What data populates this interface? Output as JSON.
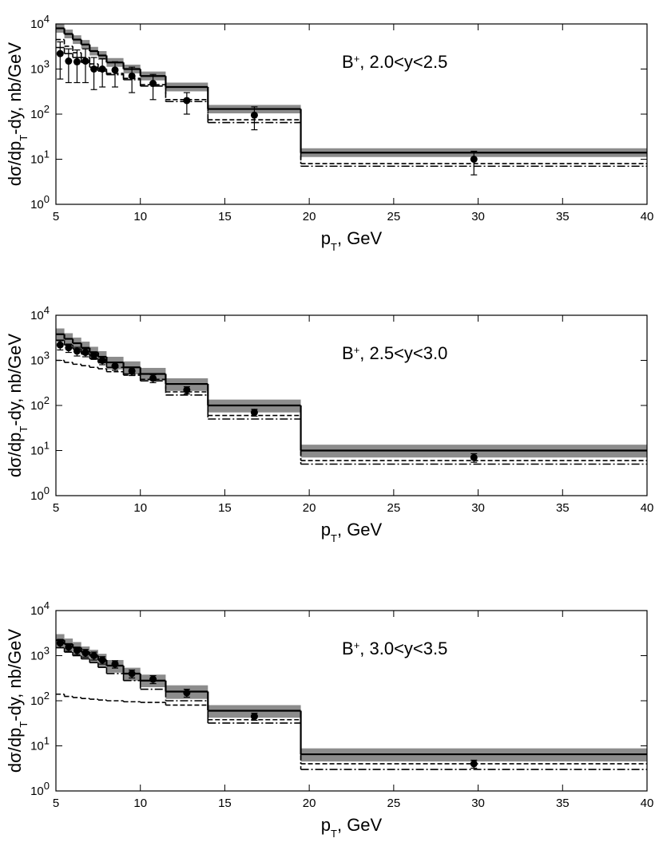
{
  "chart_data": [
    {
      "type": "histogram",
      "log_y": true,
      "annotation": [
        "B",
        "+",
        ", 2.0<y<2.5"
      ],
      "xlabel": [
        "p",
        "T",
        ", GeV"
      ],
      "ylabel": [
        "dσ/dp",
        "T",
        "-dy, nb/GeV"
      ],
      "xlim": [
        5,
        40
      ],
      "xticks": [
        5,
        10,
        15,
        20,
        25,
        30,
        35,
        40
      ],
      "ylim": [
        1,
        10000
      ],
      "yticks": [
        {
          "value": 1,
          "label": [
            "10",
            "0"
          ]
        },
        {
          "value": 10,
          "label": [
            "10",
            "1"
          ]
        },
        {
          "value": 100,
          "label": [
            "10",
            "2"
          ]
        },
        {
          "value": 1000,
          "label": [
            "10",
            "3"
          ]
        },
        {
          "value": 10000,
          "label": [
            "10",
            "4"
          ]
        }
      ],
      "bins": [
        5,
        5.5,
        6,
        6.5,
        7,
        7.5,
        8,
        9,
        10,
        11.5,
        14,
        19.5,
        40
      ],
      "band": {
        "color": "#8c8c8c",
        "low": [
          6400,
          4800,
          3600,
          2800,
          2000,
          1600,
          1120,
          800,
          560,
          320,
          104,
          11.2
        ],
        "high": [
          10000,
          7500,
          5600,
          4400,
          3100,
          2500,
          1750,
          1250,
          880,
          500,
          160,
          17.5
        ]
      },
      "histograms": [
        {
          "style": "solid",
          "color": "#000000",
          "values": [
            8000,
            6000,
            4500,
            3500,
            2500,
            2000,
            1400,
            1000,
            700,
            400,
            130,
            14
          ]
        },
        {
          "style": "dashed",
          "color": "#000000",
          "values": [
            4500,
            3200,
            2300,
            1800,
            1300,
            1000,
            800,
            620,
            450,
            210,
            75,
            8
          ]
        },
        {
          "style": "dashdot",
          "color": "#000000",
          "values": [
            3000,
            2200,
            1800,
            1400,
            1100,
            900,
            750,
            580,
            420,
            190,
            65,
            7
          ]
        }
      ],
      "points": {
        "color": "#000000",
        "x": [
          5.25,
          5.75,
          6.25,
          6.75,
          7.25,
          7.75,
          8.5,
          9.5,
          10.75,
          12.75,
          16.75,
          29.75
        ],
        "values": [
          2200,
          1500,
          1450,
          1500,
          1000,
          1000,
          950,
          700,
          480,
          200,
          95,
          10
        ],
        "errors_minus": [
          1600,
          1000,
          950,
          1000,
          650,
          600,
          550,
          400,
          270,
          100,
          50,
          5.5
        ],
        "errors_plus": [
          1800,
          1300,
          1200,
          1300,
          800,
          700,
          500,
          400,
          280,
          100,
          50,
          5
        ]
      }
    },
    {
      "type": "histogram",
      "log_y": true,
      "annotation": [
        "B",
        "+",
        ", 2.5<y<3.0"
      ],
      "xlabel": [
        "p",
        "T",
        ", GeV"
      ],
      "ylabel": [
        "dσ/dp",
        "T",
        "-dy, nb/GeV"
      ],
      "xlim": [
        5,
        40
      ],
      "xticks": [
        5,
        10,
        15,
        20,
        25,
        30,
        35,
        40
      ],
      "ylim": [
        1,
        10000
      ],
      "yticks": [
        {
          "value": 1,
          "label": [
            "10",
            "0"
          ]
        },
        {
          "value": 10,
          "label": [
            "10",
            "1"
          ]
        },
        {
          "value": 100,
          "label": [
            "10",
            "2"
          ]
        },
        {
          "value": 1000,
          "label": [
            "10",
            "3"
          ]
        },
        {
          "value": 10000,
          "label": [
            "10",
            "4"
          ]
        }
      ],
      "bins": [
        5,
        5.5,
        6,
        6.5,
        7,
        7.5,
        8,
        9,
        10,
        11.5,
        14,
        19.5,
        40
      ],
      "band": {
        "color": "#8c8c8c",
        "low": [
          2700,
          2100,
          1700,
          1300,
          1050,
          840,
          630,
          490,
          350,
          210,
          70,
          7
        ],
        "high": [
          5100,
          4000,
          3200,
          2600,
          2000,
          1600,
          1200,
          950,
          680,
          400,
          135,
          13.5
        ]
      },
      "histograms": [
        {
          "style": "solid",
          "color": "#000000",
          "values": [
            3800,
            3000,
            2400,
            1900,
            1500,
            1200,
            900,
            700,
            500,
            300,
            100,
            10
          ]
        },
        {
          "style": "dashed",
          "color": "#000000",
          "values": [
            1000,
            900,
            820,
            760,
            700,
            650,
            560,
            470,
            380,
            200,
            60,
            6
          ]
        },
        {
          "style": "dashdot",
          "color": "#000000",
          "values": [
            2800,
            2200,
            1800,
            1400,
            1100,
            900,
            700,
            500,
            350,
            170,
            50,
            5
          ]
        }
      ],
      "points": {
        "color": "#000000",
        "x": [
          5.25,
          5.75,
          6.25,
          6.75,
          7.25,
          7.75,
          8.5,
          9.5,
          10.75,
          12.75,
          16.75,
          29.75
        ],
        "values": [
          2200,
          1900,
          1600,
          1500,
          1300,
          1000,
          750,
          580,
          400,
          220,
          70,
          7
        ],
        "errors_minus": [
          500,
          400,
          350,
          300,
          250,
          200,
          150,
          120,
          80,
          40,
          12,
          1.5
        ],
        "errors_plus": [
          500,
          400,
          350,
          300,
          250,
          200,
          150,
          120,
          80,
          40,
          12,
          1.5
        ]
      }
    },
    {
      "type": "histogram",
      "log_y": true,
      "annotation": [
        "B",
        "+",
        ", 3.0<y<3.5"
      ],
      "xlabel": [
        "p",
        "T",
        ", GeV"
      ],
      "ylabel": [
        "dσ/dp",
        "T",
        "-dy, nb/GeV"
      ],
      "xlim": [
        5,
        40
      ],
      "xticks": [
        5,
        10,
        15,
        20,
        25,
        30,
        35,
        40
      ],
      "ylim": [
        1,
        10000
      ],
      "yticks": [
        {
          "value": 1,
          "label": [
            "10",
            "0"
          ]
        },
        {
          "value": 10,
          "label": [
            "10",
            "1"
          ]
        },
        {
          "value": 100,
          "label": [
            "10",
            "2"
          ]
        },
        {
          "value": 1000,
          "label": [
            "10",
            "3"
          ]
        },
        {
          "value": 10000,
          "label": [
            "10",
            "4"
          ]
        }
      ],
      "bins": [
        5,
        5.5,
        6,
        6.5,
        7,
        7.5,
        8,
        9,
        10,
        11.5,
        14,
        19.5,
        40
      ],
      "band": {
        "color": "#8c8c8c",
        "low": [
          1500,
          1250,
          1050,
          850,
          700,
          560,
          420,
          280,
          200,
          110,
          42,
          4.5
        ],
        "high": [
          3000,
          2400,
          2000,
          1600,
          1350,
          1100,
          800,
          540,
          380,
          220,
          80,
          8.8
        ]
      },
      "histograms": [
        {
          "style": "solid",
          "color": "#000000",
          "values": [
            2200,
            1800,
            1500,
            1200,
            1000,
            800,
            600,
            400,
            280,
            160,
            60,
            6.5
          ]
        },
        {
          "style": "dashed",
          "color": "#000000",
          "values": [
            140,
            125,
            118,
            112,
            108,
            104,
            100,
            95,
            92,
            80,
            38,
            4
          ]
        },
        {
          "style": "dashdot",
          "color": "#000000",
          "values": [
            1500,
            1200,
            1000,
            850,
            700,
            550,
            400,
            280,
            180,
            100,
            32,
            3
          ]
        }
      ],
      "points": {
        "color": "#000000",
        "x": [
          5.25,
          5.75,
          6.25,
          6.75,
          7.25,
          7.75,
          8.5,
          9.5,
          10.75,
          12.75,
          16.75,
          29.75
        ],
        "values": [
          1900,
          1550,
          1300,
          1150,
          1000,
          800,
          650,
          400,
          300,
          150,
          45,
          4
        ],
        "errors_minus": [
          400,
          300,
          250,
          220,
          200,
          150,
          120,
          80,
          60,
          30,
          8,
          0.8
        ],
        "errors_plus": [
          400,
          300,
          250,
          220,
          200,
          150,
          120,
          80,
          60,
          30,
          8,
          0.8
        ]
      }
    }
  ]
}
